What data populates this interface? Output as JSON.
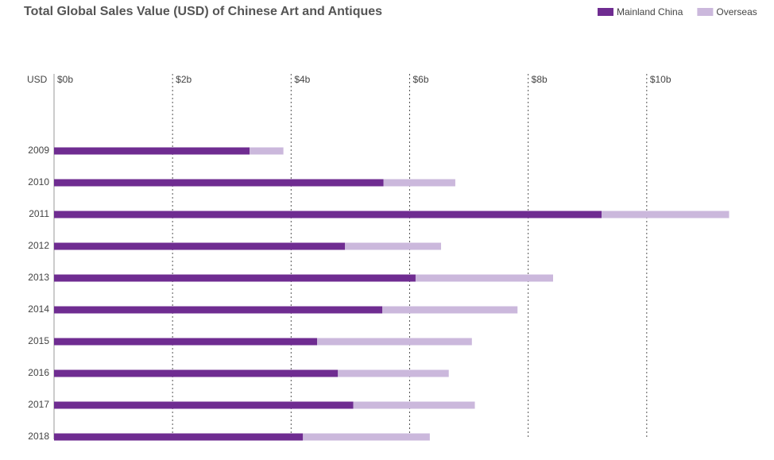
{
  "chart_data": {
    "type": "stacked_barh",
    "title": "Total Global Sales Value (USD) of Chinese Art and Antiques",
    "unit_label": "USD",
    "categories": [
      "2009",
      "2010",
      "2011",
      "2012",
      "2013",
      "2014",
      "2015",
      "2016",
      "2017",
      "2018"
    ],
    "series": [
      {
        "name": "Mainland China",
        "color": "#6f2c91",
        "values": [
          3.3,
          5.56,
          9.24,
          4.91,
          6.1,
          5.54,
          4.44,
          4.79,
          5.05,
          4.2
        ]
      },
      {
        "name": "Overseas",
        "color": "#cbb8dc",
        "values": [
          0.57,
          1.21,
          2.15,
          1.62,
          2.32,
          2.28,
          2.61,
          1.87,
          2.05,
          2.14
        ]
      }
    ],
    "xlim": [
      0,
      12
    ],
    "xticks": [
      {
        "value": 0,
        "label": "$0b"
      },
      {
        "value": 2,
        "label": "$2b"
      },
      {
        "value": 4,
        "label": "$4b"
      },
      {
        "value": 6,
        "label": "$6b"
      },
      {
        "value": 8,
        "label": "$8b"
      },
      {
        "value": 10,
        "label": "$10b"
      }
    ],
    "grid": true,
    "legend": "top-right"
  }
}
